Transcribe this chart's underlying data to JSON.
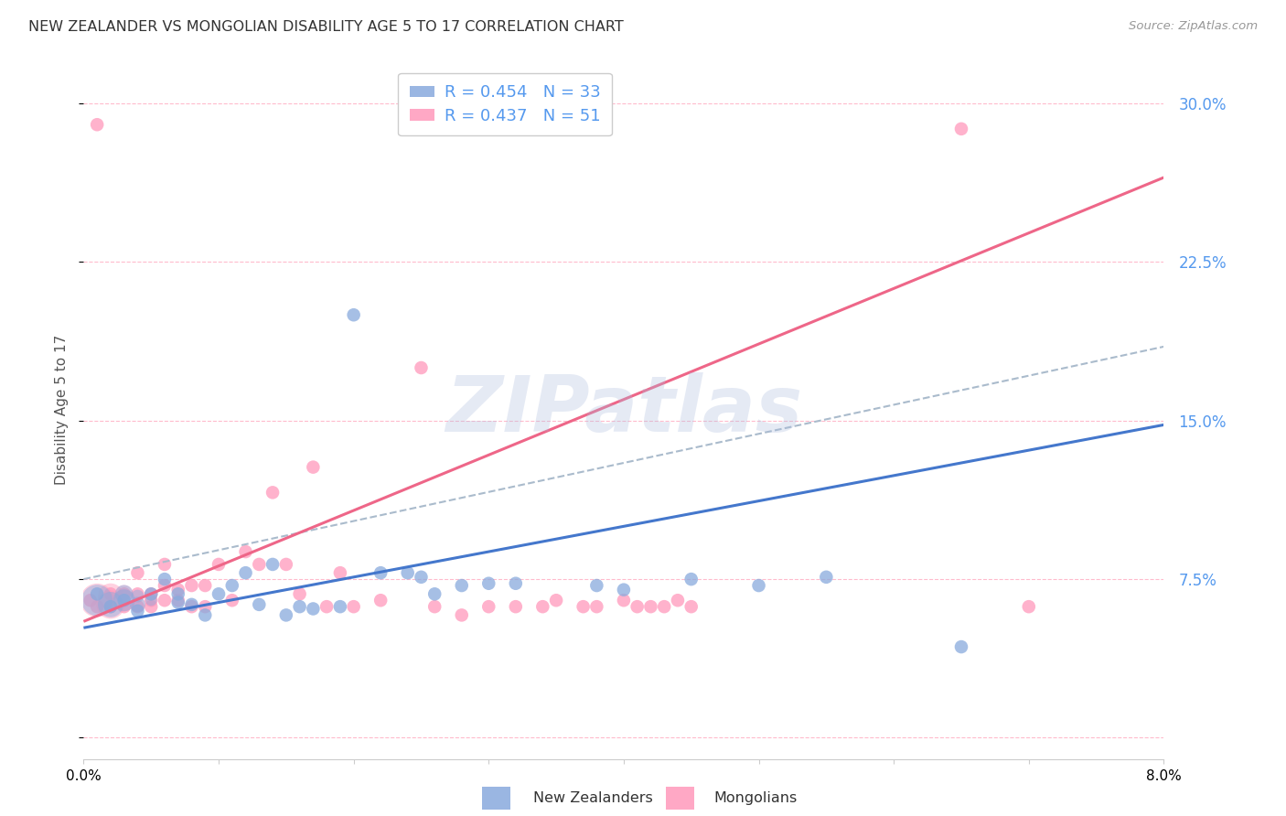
{
  "title": "NEW ZEALANDER VS MONGOLIAN DISABILITY AGE 5 TO 17 CORRELATION CHART",
  "source": "Source: ZipAtlas.com",
  "ylabel": "Disability Age 5 to 17",
  "xlim": [
    0.0,
    0.08
  ],
  "ylim": [
    -0.01,
    0.32
  ],
  "xtick_vals": [
    0.0,
    0.01,
    0.02,
    0.03,
    0.04,
    0.05,
    0.06,
    0.07,
    0.08
  ],
  "ytick_vals": [
    0.0,
    0.075,
    0.15,
    0.225,
    0.3
  ],
  "nz_color": "#88AADD",
  "mongolian_color": "#FF99BB",
  "nz_R": 0.454,
  "nz_N": 33,
  "mongolian_R": 0.437,
  "mongolian_N": 51,
  "background_color": "#FFFFFF",
  "grid_color": "#FFBBCC",
  "right_axis_color": "#5599EE",
  "nz_scatter_x": [
    0.001,
    0.002,
    0.003,
    0.004,
    0.005,
    0.006,
    0.007,
    0.007,
    0.008,
    0.009,
    0.01,
    0.011,
    0.012,
    0.013,
    0.014,
    0.015,
    0.016,
    0.017,
    0.019,
    0.02,
    0.022,
    0.024,
    0.025,
    0.026,
    0.028,
    0.03,
    0.032,
    0.038,
    0.04,
    0.045,
    0.05,
    0.055,
    0.065
  ],
  "nz_scatter_y": [
    0.068,
    0.062,
    0.065,
    0.06,
    0.068,
    0.075,
    0.064,
    0.068,
    0.063,
    0.058,
    0.068,
    0.072,
    0.078,
    0.063,
    0.082,
    0.058,
    0.062,
    0.061,
    0.062,
    0.2,
    0.078,
    0.078,
    0.076,
    0.068,
    0.072,
    0.073,
    0.073,
    0.072,
    0.07,
    0.075,
    0.072,
    0.076,
    0.043
  ],
  "mongolian_scatter_x": [
    0.0005,
    0.001,
    0.001,
    0.002,
    0.002,
    0.003,
    0.003,
    0.004,
    0.004,
    0.004,
    0.005,
    0.005,
    0.005,
    0.006,
    0.006,
    0.006,
    0.007,
    0.007,
    0.008,
    0.008,
    0.009,
    0.009,
    0.01,
    0.011,
    0.012,
    0.013,
    0.014,
    0.015,
    0.016,
    0.017,
    0.018,
    0.019,
    0.02,
    0.022,
    0.025,
    0.026,
    0.028,
    0.03,
    0.032,
    0.034,
    0.035,
    0.037,
    0.038,
    0.04,
    0.041,
    0.042,
    0.043,
    0.044,
    0.045,
    0.065,
    0.07
  ],
  "mongolian_scatter_y": [
    0.065,
    0.062,
    0.29,
    0.062,
    0.068,
    0.062,
    0.068,
    0.062,
    0.068,
    0.078,
    0.062,
    0.068,
    0.065,
    0.072,
    0.082,
    0.065,
    0.065,
    0.07,
    0.062,
    0.072,
    0.062,
    0.072,
    0.082,
    0.065,
    0.088,
    0.082,
    0.116,
    0.082,
    0.068,
    0.128,
    0.062,
    0.078,
    0.062,
    0.065,
    0.175,
    0.062,
    0.058,
    0.062,
    0.062,
    0.062,
    0.065,
    0.062,
    0.062,
    0.065,
    0.062,
    0.062,
    0.062,
    0.065,
    0.062,
    0.288,
    0.062
  ],
  "nz_trend_x": [
    0.0,
    0.08
  ],
  "nz_trend_y": [
    0.052,
    0.148
  ],
  "mongolian_trend_x": [
    0.0,
    0.08
  ],
  "mongolian_trend_y": [
    0.055,
    0.265
  ],
  "dashed_line_x": [
    0.0,
    0.08
  ],
  "dashed_line_y": [
    0.075,
    0.185
  ],
  "watermark_text": "ZIPatlas",
  "nz_cluster_sizes": [
    600,
    400,
    300,
    200,
    150,
    100,
    80
  ],
  "nz_cluster_x": [
    0.001,
    0.002,
    0.003,
    0.003,
    0.004,
    0.004,
    0.005
  ],
  "nz_cluster_y": [
    0.065,
    0.063,
    0.065,
    0.068,
    0.063,
    0.067,
    0.065
  ],
  "mongolian_cluster_sizes": [
    700,
    500,
    400,
    300,
    200,
    150
  ],
  "mongolian_cluster_x": [
    0.001,
    0.002,
    0.002,
    0.003,
    0.003,
    0.004
  ],
  "mongolian_cluster_y": [
    0.065,
    0.063,
    0.067,
    0.065,
    0.068,
    0.063
  ]
}
